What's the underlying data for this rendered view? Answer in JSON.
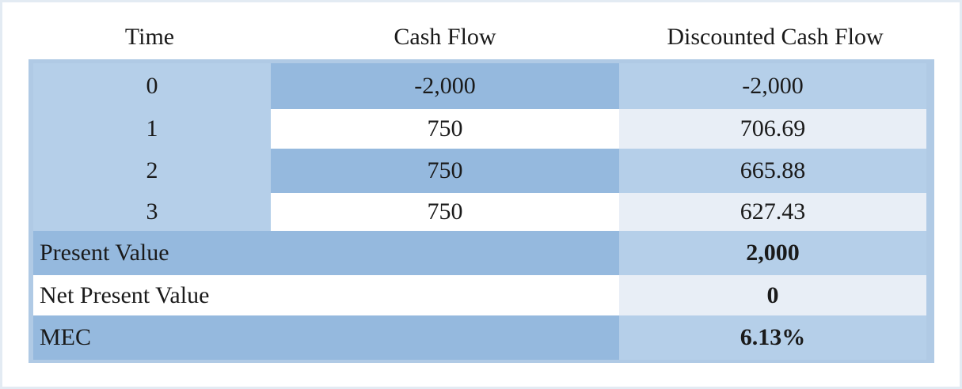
{
  "headers": [
    "Time",
    "Cash Flow",
    "Discounted Cash Flow"
  ],
  "rows": [
    {
      "time": "0",
      "cash_flow": "-2,000",
      "discounted": "-2,000"
    },
    {
      "time": "1",
      "cash_flow": "750",
      "discounted": "706.69"
    },
    {
      "time": "2",
      "cash_flow": "750",
      "discounted": "665.88"
    },
    {
      "time": "3",
      "cash_flow": "750",
      "discounted": "627.43"
    }
  ],
  "summary": [
    {
      "label": "Present Value",
      "value": "2,000"
    },
    {
      "label": "Net Present Value",
      "value": "0"
    },
    {
      "label": "MEC",
      "value": "6.13%"
    }
  ],
  "colors": {
    "header_bg": "#ffffff",
    "band_light": "#b5cfe9",
    "band_mid": "#95b9de",
    "row_white": "#ffffff",
    "row_pale": "#e8eef6",
    "border": "#b0cae5"
  }
}
